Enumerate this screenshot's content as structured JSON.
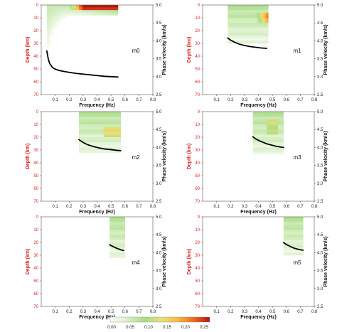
{
  "figure": {
    "colorbar": {
      "ticks": [
        "0.00",
        "0.05",
        "0.10",
        "0.15",
        "0.20",
        "0.25"
      ],
      "colors": [
        "#ffffff",
        "#d9f0c8",
        "#a8dc84",
        "#e8e07a",
        "#f7b93c",
        "#ec6a24",
        "#b8140f"
      ]
    },
    "curve_color": "#000000",
    "left_axis_color": "#d62020"
  },
  "chart_data": [
    {
      "type": "heatmap",
      "name": "m0",
      "xlabel": "Frequency (Hz)",
      "ylabel": "Depth (km)",
      "y2label": "Phase velocity (km/s)",
      "xlim": [
        0.0,
        0.8
      ],
      "ylim": [
        0,
        70
      ],
      "y2lim": [
        2.5,
        5.0
      ],
      "xticks": [
        "0.1",
        "0.2",
        "0.3",
        "0.4",
        "0.5",
        "0.6",
        "0.7",
        "0.8"
      ],
      "yticks": [
        "0",
        "10",
        "20",
        "30",
        "40",
        "50",
        "60",
        "70"
      ],
      "y2ticks": [
        "2.5",
        "3.0",
        "3.5",
        "4.0",
        "4.5",
        "5.0"
      ],
      "freq_range": [
        0.04,
        0.55
      ],
      "curve": {
        "x": [
          0.04,
          0.05,
          0.06,
          0.08,
          0.1,
          0.13,
          0.17,
          0.2,
          0.25,
          0.3,
          0.35,
          0.4,
          0.45,
          0.5,
          0.55
        ],
        "y": [
          3.72,
          3.5,
          3.37,
          3.26,
          3.21,
          3.17,
          3.14,
          3.12,
          3.09,
          3.07,
          3.05,
          3.03,
          3.01,
          3.0,
          2.99
        ]
      }
    },
    {
      "type": "heatmap",
      "name": "m1",
      "xlabel": "Frequency (Hz)",
      "ylabel": "Depth (km)",
      "y2label": "Phase velocity (km/s)",
      "xlim": [
        0.0,
        0.8
      ],
      "ylim": [
        0,
        70
      ],
      "y2lim": [
        2.5,
        5.0
      ],
      "xticks": [
        "0.1",
        "0.2",
        "0.3",
        "0.4",
        "0.5",
        "0.6",
        "0.7",
        "0.8"
      ],
      "yticks": [
        "0",
        "10",
        "20",
        "30",
        "40",
        "50",
        "60",
        "70"
      ],
      "y2ticks": [
        "2.5",
        "3.0",
        "3.5",
        "4.0",
        "4.5",
        "5.0"
      ],
      "freq_range": [
        0.18,
        0.47
      ],
      "curve": {
        "x": [
          0.18,
          0.2,
          0.23,
          0.26,
          0.3,
          0.34,
          0.38,
          0.42,
          0.46
        ],
        "y": [
          4.08,
          4.02,
          3.96,
          3.91,
          3.87,
          3.84,
          3.82,
          3.8,
          3.79
        ]
      }
    },
    {
      "type": "heatmap",
      "name": "m2",
      "xlabel": "Frequency (Hz)",
      "ylabel": "Depth (km)",
      "y2label": "Phase velocity (km/s)",
      "xlim": [
        0.0,
        0.8
      ],
      "ylim": [
        0,
        70
      ],
      "y2lim": [
        2.5,
        5.0
      ],
      "xticks": [
        "0.1",
        "0.2",
        "0.3",
        "0.4",
        "0.5",
        "0.6",
        "0.7",
        "0.8"
      ],
      "yticks": [
        "0",
        "10",
        "20",
        "30",
        "40",
        "50",
        "60",
        "70"
      ],
      "y2ticks": [
        "2.5",
        "3.0",
        "3.5",
        "4.0",
        "4.5",
        "5.0"
      ],
      "freq_range": [
        0.27,
        0.57
      ],
      "curve": {
        "x": [
          0.27,
          0.3,
          0.33,
          0.37,
          0.41,
          0.45,
          0.5,
          0.54,
          0.57
        ],
        "y": [
          4.22,
          4.14,
          4.08,
          4.03,
          3.99,
          3.96,
          3.94,
          3.92,
          3.91
        ]
      }
    },
    {
      "type": "heatmap",
      "name": "m3",
      "xlabel": "Frequency (Hz)",
      "ylabel": "Depth (km)",
      "y2label": "Phase velocity (km/s)",
      "xlim": [
        0.0,
        0.8
      ],
      "ylim": [
        0,
        70
      ],
      "y2lim": [
        2.5,
        5.0
      ],
      "xticks": [
        "0.1",
        "0.2",
        "0.3",
        "0.4",
        "0.5",
        "0.6",
        "0.7",
        "0.8"
      ],
      "yticks": [
        "0",
        "10",
        "20",
        "30",
        "40",
        "50",
        "60",
        "70"
      ],
      "y2ticks": [
        "2.5",
        "3.0",
        "3.5",
        "4.0",
        "4.5",
        "5.0"
      ],
      "freq_range": [
        0.36,
        0.58
      ],
      "curve": {
        "x": [
          0.36,
          0.38,
          0.41,
          0.44,
          0.47,
          0.5,
          0.53,
          0.56,
          0.58
        ],
        "y": [
          4.3,
          4.24,
          4.18,
          4.13,
          4.09,
          4.06,
          4.03,
          4.01,
          4.0
        ]
      }
    },
    {
      "type": "heatmap",
      "name": "m4",
      "xlabel": "Frequency (Hz)",
      "ylabel": "Depth (km)",
      "y2label": "Phase velocity (km/s)",
      "xlim": [
        0.0,
        0.8
      ],
      "ylim": [
        0,
        70
      ],
      "y2lim": [
        2.5,
        5.0
      ],
      "xticks": [
        "0.1",
        "0.2",
        "0.3",
        "0.4",
        "0.5",
        "0.6",
        "0.7",
        "0.8"
      ],
      "yticks": [
        "0",
        "10",
        "20",
        "30",
        "40",
        "50",
        "60",
        "70"
      ],
      "y2ticks": [
        "2.5",
        "3.0",
        "3.5",
        "4.0",
        "4.5",
        "5.0"
      ],
      "freq_range": [
        0.49,
        0.6
      ],
      "curve": {
        "x": [
          0.49,
          0.51,
          0.53,
          0.55,
          0.57,
          0.59
        ],
        "y": [
          4.22,
          4.18,
          4.14,
          4.11,
          4.08,
          4.06
        ]
      }
    },
    {
      "type": "heatmap",
      "name": "m5",
      "xlabel": "Frequency (Hz)",
      "ylabel": "Depth (km)",
      "y2label": "Phase velocity (km/s)",
      "xlim": [
        0.0,
        0.8
      ],
      "ylim": [
        0,
        70
      ],
      "y2lim": [
        2.5,
        5.0
      ],
      "xticks": [
        "0.1",
        "0.2",
        "0.3",
        "0.4",
        "0.5",
        "0.6",
        "0.7",
        "0.8"
      ],
      "yticks": [
        "0",
        "10",
        "20",
        "30",
        "40",
        "50",
        "60",
        "70"
      ],
      "y2ticks": [
        "2.5",
        "3.0",
        "3.5",
        "4.0",
        "4.5",
        "5.0"
      ],
      "freq_range": [
        0.58,
        0.72
      ],
      "curve": {
        "x": [
          0.58,
          0.6,
          0.62,
          0.64,
          0.66,
          0.68,
          0.7,
          0.72
        ],
        "y": [
          4.28,
          4.23,
          4.19,
          4.15,
          4.12,
          4.1,
          4.08,
          4.07
        ]
      }
    }
  ]
}
